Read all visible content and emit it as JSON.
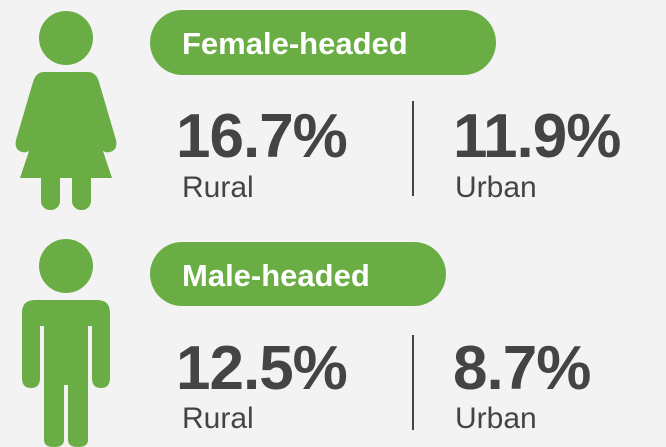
{
  "groups": [
    {
      "label": "Female-headed",
      "stats": [
        {
          "value": "16.7%",
          "label": "Rural"
        },
        {
          "value": "11.9%",
          "label": "Urban"
        }
      ]
    },
    {
      "label": "Male-headed",
      "stats": [
        {
          "value": "12.5%",
          "label": "Rural"
        },
        {
          "value": "8.7%",
          "label": "Urban"
        }
      ]
    }
  ]
}
